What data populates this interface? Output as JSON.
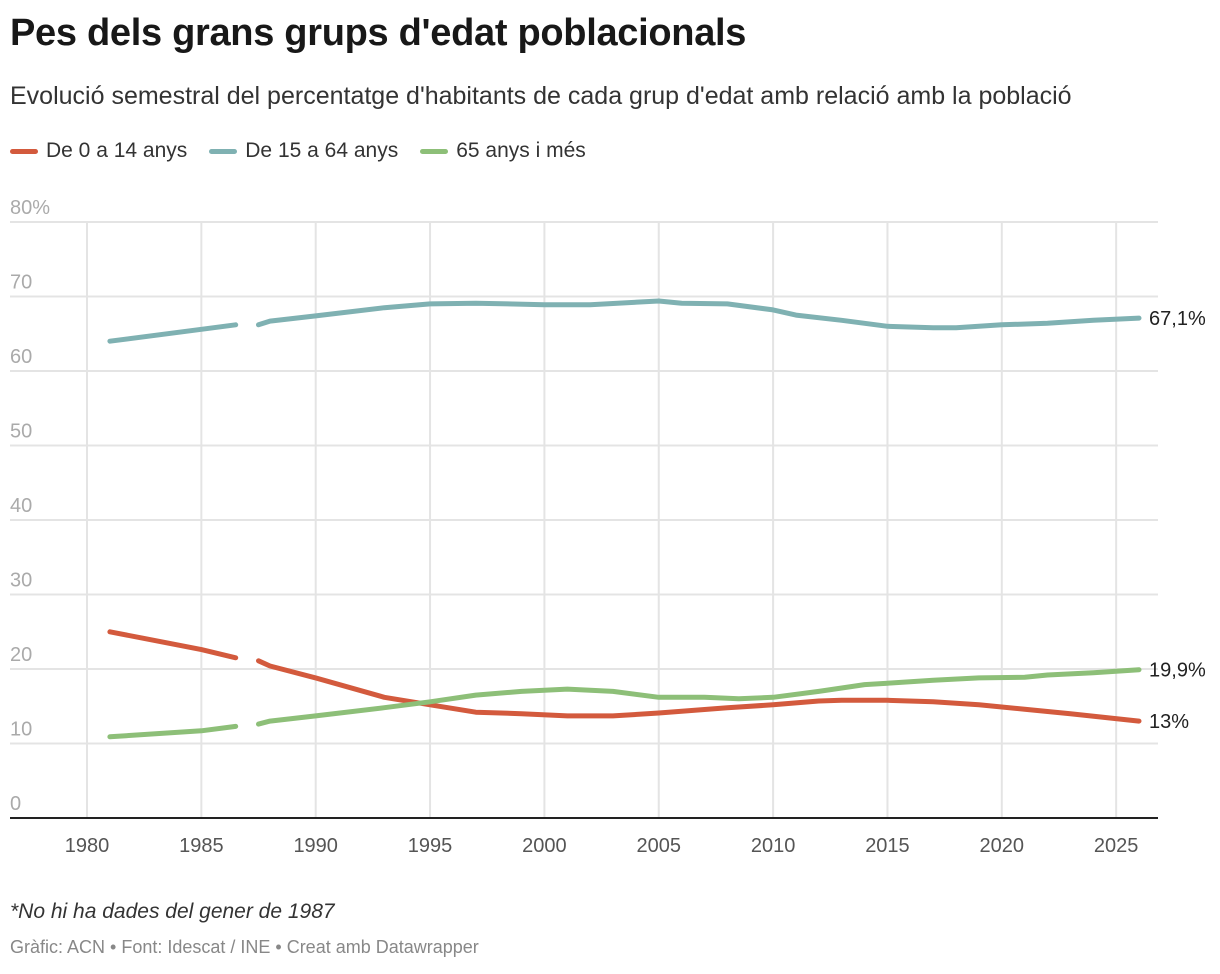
{
  "title": "Pes dels grans grups d'edat poblacionals",
  "subtitle": "Evolució semestral del percentatge d'habitants de cada grup d'edat amb relació amb la població",
  "note": "*No hi ha dades del gener de 1987",
  "footer": "Gràfic: ACN • Font: Idescat / INE • Creat amb Datawrapper",
  "chart_data": {
    "type": "line",
    "title": "Pes dels grans grups d'edat poblacionals",
    "xlabel": "",
    "ylabel": "",
    "xlim": [
      1980,
      2026
    ],
    "ylim": [
      0,
      80
    ],
    "grid": true,
    "legend": "top-left",
    "x_ticks": [
      "1980",
      "1985",
      "1990",
      "1995",
      "2000",
      "2005",
      "2010",
      "2015",
      "2020",
      "2025"
    ],
    "y_ticks": [
      {
        "value": 0,
        "label": "0"
      },
      {
        "value": 10,
        "label": "10"
      },
      {
        "value": 20,
        "label": "20"
      },
      {
        "value": 30,
        "label": "30"
      },
      {
        "value": 40,
        "label": "40"
      },
      {
        "value": 50,
        "label": "50"
      },
      {
        "value": 60,
        "label": "60"
      },
      {
        "value": 70,
        "label": "70"
      },
      {
        "value": 80,
        "label": "80%"
      }
    ],
    "series": [
      {
        "name": "De 0 a 14 anys",
        "color": "#d35a3d",
        "end_label": "13%",
        "x": [
          1981,
          1985,
          1986.5,
          1987,
          1987.5,
          1988,
          1990,
          1993,
          1995,
          1997,
          1999,
          2001,
          2003,
          2005,
          2008,
          2010,
          2012,
          2013,
          2015,
          2017,
          2019,
          2021,
          2023,
          2026
        ],
        "y": [
          25.0,
          22.6,
          21.5,
          null,
          21.1,
          20.4,
          18.8,
          16.2,
          15.2,
          14.2,
          14.0,
          13.7,
          13.7,
          14.1,
          14.8,
          15.2,
          15.7,
          15.8,
          15.8,
          15.6,
          15.2,
          14.6,
          14.0,
          13.0
        ]
      },
      {
        "name": "De 15 a 64 anys",
        "color": "#7fb1b2",
        "end_label": "67,1%",
        "x": [
          1981,
          1985,
          1986.5,
          1987,
          1987.5,
          1988,
          1990,
          1993,
          1995,
          1997,
          2000,
          2002,
          2005,
          2006,
          2008,
          2010,
          2011,
          2013,
          2015,
          2017,
          2018,
          2020,
          2022,
          2024,
          2026
        ],
        "y": [
          64.0,
          65.6,
          66.2,
          null,
          66.2,
          66.7,
          67.4,
          68.5,
          69.0,
          69.1,
          68.9,
          68.9,
          69.4,
          69.1,
          69.0,
          68.2,
          67.5,
          66.8,
          66.0,
          65.8,
          65.8,
          66.2,
          66.4,
          66.8,
          67.1
        ]
      },
      {
        "name": "65 anys i més",
        "color": "#8dbf78",
        "end_label": "19,9%",
        "x": [
          1981,
          1985,
          1986.5,
          1987,
          1987.5,
          1988,
          1990,
          1993,
          1995,
          1997,
          1999,
          2001,
          2003,
          2005,
          2007,
          2008.5,
          2010,
          2012,
          2014,
          2015,
          2017,
          2019,
          2021,
          2022,
          2024,
          2026
        ],
        "y": [
          10.9,
          11.7,
          12.3,
          null,
          12.6,
          13.0,
          13.7,
          14.8,
          15.6,
          16.5,
          17.0,
          17.3,
          17.0,
          16.2,
          16.2,
          16.0,
          16.2,
          17.0,
          17.9,
          18.1,
          18.5,
          18.8,
          18.9,
          19.2,
          19.5,
          19.9
        ]
      }
    ]
  }
}
